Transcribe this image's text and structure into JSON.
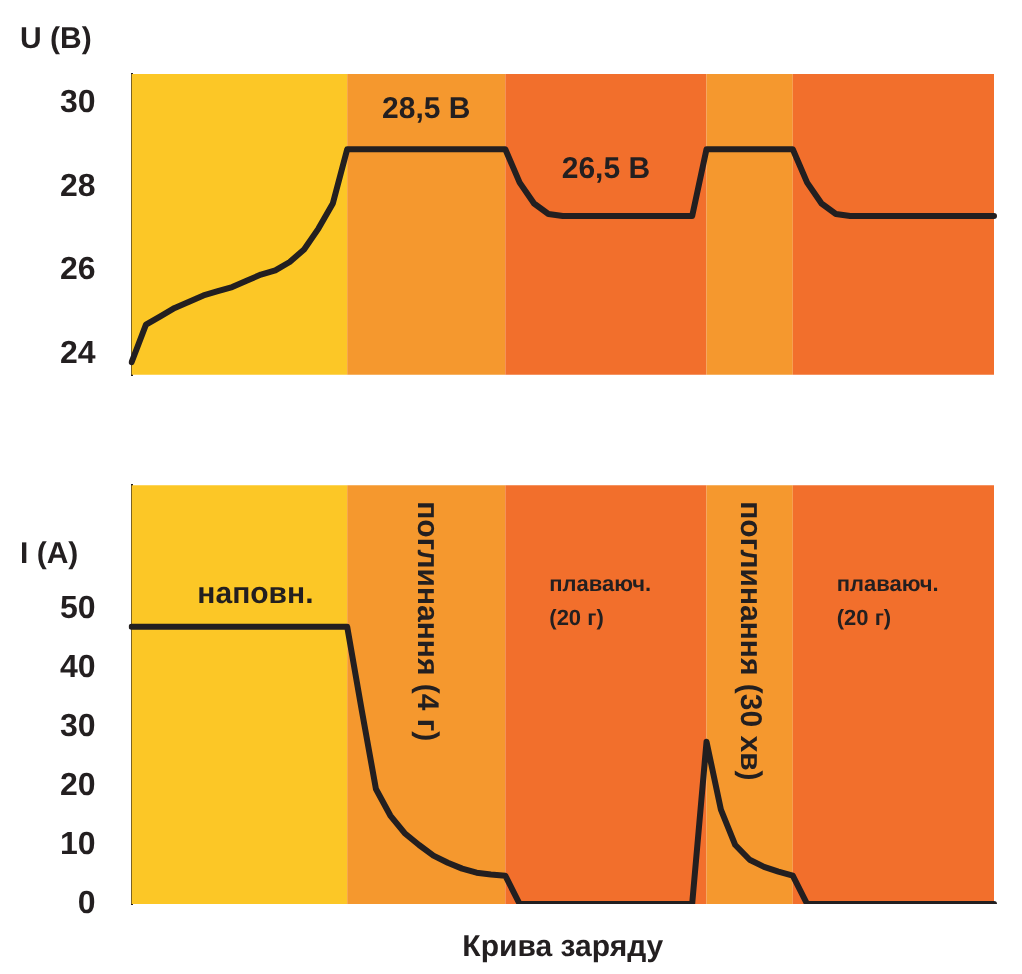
{
  "chart_data": [
    {
      "type": "line",
      "ylabel": "U (B)",
      "ylim": [
        23.5,
        30.7
      ],
      "yticks": [
        24,
        26,
        28,
        30
      ],
      "tick_labels": "y",
      "grid": false,
      "legend": false,
      "marker": "none",
      "line_style": "solid",
      "categories": [
        null,
        null,
        null,
        null,
        null,
        null,
        null,
        null,
        null,
        null,
        null,
        null,
        null,
        null,
        null,
        null,
        null,
        null,
        null,
        null,
        null,
        null,
        null,
        null,
        null,
        null,
        null,
        null,
        null,
        null,
        null,
        null,
        null,
        null,
        null,
        null,
        null,
        null,
        null,
        null,
        null,
        null,
        null,
        null,
        null,
        null,
        null,
        null,
        null,
        null,
        null,
        null,
        null,
        null,
        null,
        null,
        null,
        null,
        null,
        null,
        null
      ],
      "series": [
        {
          "color": "#231f20",
          "values": [
            23.8,
            24.7,
            24.9,
            25.1,
            25.25,
            25.4,
            25.5,
            25.6,
            25.75,
            25.9,
            26.0,
            26.2,
            26.5,
            27.0,
            27.6,
            28.9,
            28.9,
            28.9,
            28.9,
            28.9,
            28.9,
            28.9,
            28.9,
            28.9,
            28.9,
            28.9,
            28.9,
            28.1,
            27.6,
            27.35,
            27.3,
            27.3,
            27.3,
            27.3,
            27.3,
            27.3,
            27.3,
            27.3,
            27.3,
            27.3,
            28.9,
            28.9,
            28.9,
            28.9,
            28.9,
            28.9,
            28.9,
            28.1,
            27.6,
            27.35,
            27.3,
            27.3,
            27.3,
            27.3,
            27.3,
            27.3,
            27.3,
            27.3,
            27.3,
            27.3,
            27.3
          ]
        }
      ],
      "annotations": [
        "28,5 В",
        "26,5 В"
      ]
    },
    {
      "type": "line",
      "ylabel": "I (A)",
      "xlabel": "Крива заряду",
      "ylim": [
        0,
        71
      ],
      "yticks": [
        0,
        10,
        20,
        30,
        40,
        50
      ],
      "tick_labels": "y",
      "grid": false,
      "legend": false,
      "marker": "none",
      "line_style": "solid",
      "categories": [
        null,
        null,
        null,
        null,
        null,
        null,
        null,
        null,
        null,
        null,
        null,
        null,
        null,
        null,
        null,
        null,
        null,
        null,
        null,
        null,
        null,
        null,
        null,
        null,
        null,
        null,
        null,
        null,
        null,
        null,
        null,
        null,
        null,
        null,
        null,
        null,
        null,
        null,
        null,
        null,
        null,
        null,
        null,
        null,
        null,
        null,
        null,
        null,
        null,
        null,
        null,
        null,
        null,
        null,
        null,
        null,
        null,
        null,
        null,
        null,
        null
      ],
      "series": [
        {
          "color": "#231f20",
          "values": [
            47,
            47,
            47,
            47,
            47,
            47,
            47,
            47,
            47,
            47,
            47,
            47,
            47,
            47,
            47,
            47,
            33,
            19.5,
            15,
            12,
            10,
            8.2,
            7,
            6,
            5.3,
            5,
            4.8,
            0,
            0,
            0,
            0,
            0,
            0,
            0,
            0,
            0,
            0,
            0,
            0,
            0,
            27.5,
            16,
            10,
            7.5,
            6.3,
            5.5,
            4.8,
            0,
            0,
            0,
            0,
            0,
            0,
            0,
            0,
            0,
            0,
            0,
            0,
            0,
            0
          ]
        }
      ],
      "annotations": [
        "наповн.",
        "поглинання (4 г)",
        "плаваюч. (20 г)",
        "поглинання (30 хв)",
        "плаваюч. (20 г)"
      ]
    }
  ]
}
